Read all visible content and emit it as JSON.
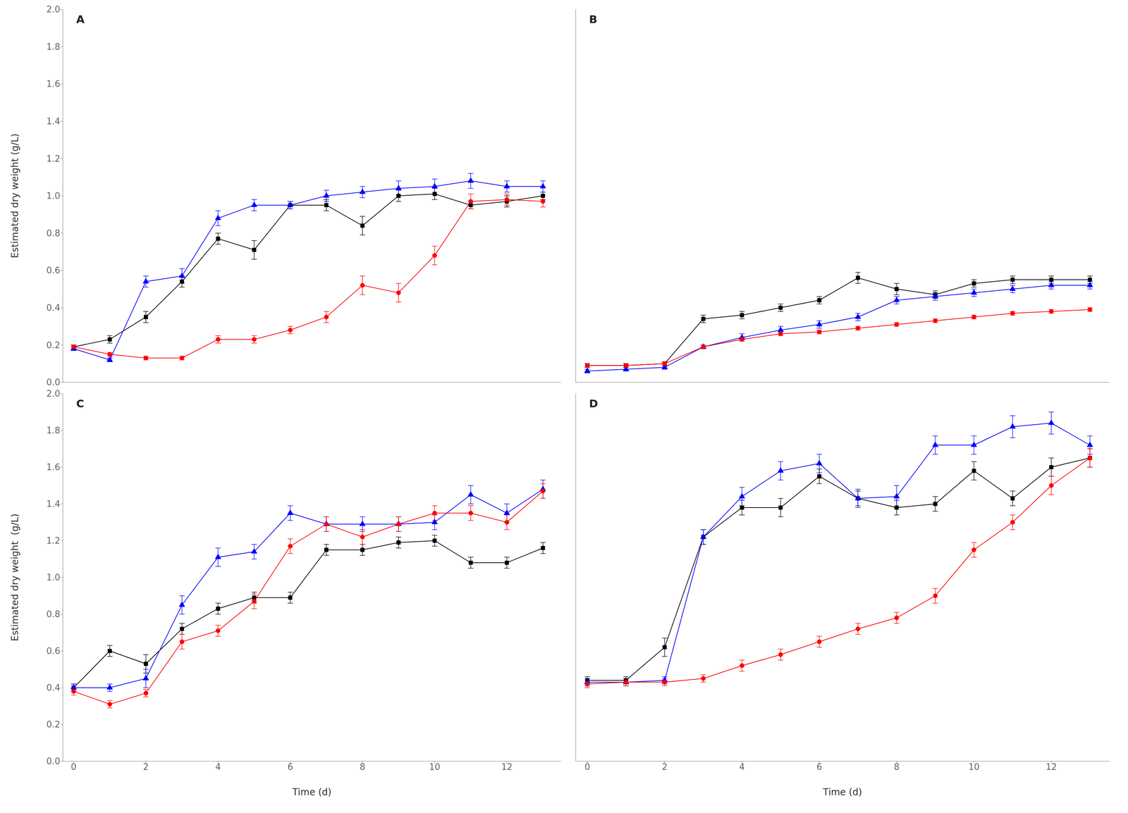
{
  "chart_data": [
    {
      "type": "line",
      "title": "A",
      "tick_labels": "y",
      "ylabel": "Estimated dry weight (g/L)",
      "x": [
        0,
        1,
        2,
        3,
        4,
        5,
        6,
        7,
        8,
        9,
        10,
        11,
        12,
        13
      ],
      "xlim": [
        -0.3,
        13.5
      ],
      "xticks": [
        0,
        2,
        4,
        6,
        8,
        10,
        12
      ],
      "ylim": [
        0.0,
        2.0
      ],
      "yticks": [
        {
          "value": 0.0,
          "label": "0.0"
        },
        0.2,
        0.4,
        0.6,
        0.8,
        {
          "value": 1.0,
          "label": "1.0"
        },
        1.2,
        1.4,
        1.6,
        1.8,
        {
          "value": 2.0,
          "label": "2.0"
        }
      ],
      "series": [
        {
          "color": "#000000",
          "marker": "square",
          "values": [
            0.19,
            0.23,
            0.35,
            0.54,
            0.77,
            0.71,
            0.95,
            0.95,
            0.84,
            1.0,
            1.01,
            0.95,
            0.97,
            1.0
          ],
          "errors": [
            0.01,
            0.02,
            0.03,
            0.03,
            0.03,
            0.05,
            0.02,
            0.03,
            0.05,
            0.03,
            0.03,
            0.02,
            0.03,
            0.02
          ]
        },
        {
          "color": "#0000FF",
          "marker": "triangle",
          "values": [
            0.18,
            0.12,
            0.54,
            0.57,
            0.88,
            0.95,
            0.95,
            1.0,
            1.02,
            1.04,
            1.05,
            1.08,
            1.05,
            1.05
          ],
          "errors": [
            0.01,
            0.01,
            0.03,
            0.04,
            0.04,
            0.03,
            0.02,
            0.03,
            0.03,
            0.04,
            0.04,
            0.04,
            0.03,
            0.03
          ]
        },
        {
          "color": "#FF0000",
          "marker": "circle",
          "values": [
            0.19,
            0.15,
            0.13,
            0.13,
            0.23,
            0.23,
            0.28,
            0.35,
            0.52,
            0.48,
            0.68,
            0.97,
            0.98,
            0.97
          ],
          "errors": [
            0.01,
            0.01,
            0.01,
            0.01,
            0.02,
            0.02,
            0.02,
            0.03,
            0.05,
            0.05,
            0.05,
            0.04,
            0.03,
            0.03
          ]
        }
      ]
    },
    {
      "type": "line",
      "title": "B",
      "tick_labels": false,
      "x": [
        0,
        1,
        2,
        3,
        4,
        5,
        6,
        7,
        8,
        9,
        10,
        11,
        12,
        13
      ],
      "xlim": [
        -0.3,
        13.5
      ],
      "xticks": [
        0,
        2,
        4,
        6,
        8,
        10,
        12
      ],
      "ylim": [
        0.0,
        2.0
      ],
      "yticks": [
        {
          "value": 0.0,
          "label": "0.0"
        },
        0.2,
        0.4,
        0.6,
        0.8,
        {
          "value": 1.0,
          "label": "1.0"
        },
        1.2,
        1.4,
        1.6,
        1.8,
        {
          "value": 2.0,
          "label": "2.0"
        }
      ],
      "series": [
        {
          "color": "#000000",
          "marker": "square",
          "values": [
            0.09,
            0.09,
            0.1,
            0.34,
            0.36,
            0.4,
            0.44,
            0.56,
            0.5,
            0.47,
            0.53,
            0.55,
            0.55,
            0.55
          ],
          "errors": [
            0.01,
            0.01,
            0.01,
            0.02,
            0.02,
            0.02,
            0.02,
            0.03,
            0.03,
            0.02,
            0.02,
            0.02,
            0.02,
            0.02
          ]
        },
        {
          "color": "#0000FF",
          "marker": "triangle",
          "values": [
            0.06,
            0.07,
            0.08,
            0.19,
            0.24,
            0.28,
            0.31,
            0.35,
            0.44,
            0.46,
            0.48,
            0.5,
            0.52,
            0.52
          ],
          "errors": [
            0.01,
            0.01,
            0.01,
            0.01,
            0.02,
            0.02,
            0.02,
            0.02,
            0.02,
            0.02,
            0.02,
            0.02,
            0.02,
            0.02
          ]
        },
        {
          "color": "#FF0000",
          "marker": "circle",
          "values": [
            0.09,
            0.09,
            0.1,
            0.19,
            0.23,
            0.26,
            0.27,
            0.29,
            0.31,
            0.33,
            0.35,
            0.37,
            0.38,
            0.39
          ],
          "errors": [
            0.01,
            0.01,
            0.01,
            0.01,
            0.01,
            0.01,
            0.01,
            0.01,
            0.01,
            0.01,
            0.01,
            0.01,
            0.01,
            0.01
          ]
        }
      ]
    },
    {
      "type": "line",
      "title": "C",
      "xlabel": "Time (d)",
      "ylabel": "Estimated dry weight  (g/L)",
      "x": [
        0,
        1,
        2,
        3,
        4,
        5,
        6,
        7,
        8,
        9,
        10,
        11,
        12,
        13
      ],
      "xlim": [
        -0.3,
        13.5
      ],
      "xticks": [
        0,
        2,
        4,
        6,
        8,
        10,
        12
      ],
      "ylim": [
        0.0,
        2.0
      ],
      "yticks": [
        {
          "value": 0.0,
          "label": "0.0"
        },
        0.2,
        0.4,
        0.6,
        0.8,
        {
          "value": 1.0,
          "label": "1.0"
        },
        1.2,
        1.4,
        1.6,
        1.8,
        {
          "value": 2.0,
          "label": "2.0"
        }
      ],
      "series": [
        {
          "color": "#000000",
          "marker": "square",
          "values": [
            0.4,
            0.6,
            0.53,
            0.72,
            0.83,
            0.89,
            0.89,
            1.15,
            1.15,
            1.19,
            1.2,
            1.08,
            1.08,
            1.16
          ],
          "errors": [
            0.02,
            0.03,
            0.05,
            0.03,
            0.03,
            0.03,
            0.03,
            0.03,
            0.03,
            0.03,
            0.03,
            0.03,
            0.03,
            0.03
          ]
        },
        {
          "color": "#0000FF",
          "marker": "triangle",
          "values": [
            0.4,
            0.4,
            0.45,
            0.85,
            1.11,
            1.14,
            1.35,
            1.29,
            1.29,
            1.29,
            1.3,
            1.45,
            1.35,
            1.48
          ],
          "errors": [
            0.02,
            0.02,
            0.05,
            0.05,
            0.05,
            0.04,
            0.04,
            0.04,
            0.04,
            0.04,
            0.04,
            0.05,
            0.05,
            0.05
          ]
        },
        {
          "color": "#FF0000",
          "marker": "circle",
          "values": [
            0.38,
            0.31,
            0.37,
            0.65,
            0.71,
            0.87,
            1.17,
            1.29,
            1.22,
            1.29,
            1.35,
            1.35,
            1.3,
            1.47
          ],
          "errors": [
            0.02,
            0.02,
            0.02,
            0.04,
            0.03,
            0.04,
            0.04,
            0.04,
            0.04,
            0.04,
            0.04,
            0.04,
            0.04,
            0.04
          ]
        }
      ]
    },
    {
      "type": "line",
      "title": "D",
      "tick_labels": "x",
      "xlabel": "Time (d)",
      "x": [
        0,
        1,
        2,
        3,
        4,
        5,
        6,
        7,
        8,
        9,
        10,
        11,
        12,
        13
      ],
      "xlim": [
        -0.3,
        13.5
      ],
      "xticks": [
        0,
        2,
        4,
        6,
        8,
        10,
        12
      ],
      "ylim": [
        0.0,
        2.0
      ],
      "yticks": [
        {
          "value": 0.0,
          "label": "0.0"
        },
        0.2,
        0.4,
        0.6,
        0.8,
        {
          "value": 1.0,
          "label": "1.0"
        },
        1.2,
        1.4,
        1.6,
        1.8,
        {
          "value": 2.0,
          "label": "2.0"
        }
      ],
      "series": [
        {
          "color": "#000000",
          "marker": "square",
          "values": [
            0.44,
            0.44,
            0.62,
            1.22,
            1.38,
            1.38,
            1.55,
            1.43,
            1.38,
            1.4,
            1.58,
            1.43,
            1.6,
            1.65
          ],
          "errors": [
            0.02,
            0.02,
            0.05,
            0.04,
            0.04,
            0.05,
            0.04,
            0.04,
            0.04,
            0.04,
            0.05,
            0.04,
            0.05,
            0.05
          ]
        },
        {
          "color": "#0000FF",
          "marker": "triangle",
          "values": [
            0.43,
            0.43,
            0.44,
            1.22,
            1.44,
            1.58,
            1.62,
            1.43,
            1.44,
            1.72,
            1.72,
            1.82,
            1.84,
            1.72
          ],
          "errors": [
            0.02,
            0.02,
            0.02,
            0.04,
            0.05,
            0.05,
            0.05,
            0.05,
            0.06,
            0.05,
            0.05,
            0.06,
            0.06,
            0.05
          ]
        },
        {
          "color": "#FF0000",
          "marker": "circle",
          "values": [
            0.42,
            0.43,
            0.43,
            0.45,
            0.52,
            0.58,
            0.65,
            0.72,
            0.78,
            0.9,
            1.15,
            1.3,
            1.5,
            1.65
          ],
          "errors": [
            0.02,
            0.02,
            0.02,
            0.02,
            0.03,
            0.03,
            0.03,
            0.03,
            0.03,
            0.04,
            0.04,
            0.04,
            0.05,
            0.05
          ]
        }
      ]
    }
  ]
}
